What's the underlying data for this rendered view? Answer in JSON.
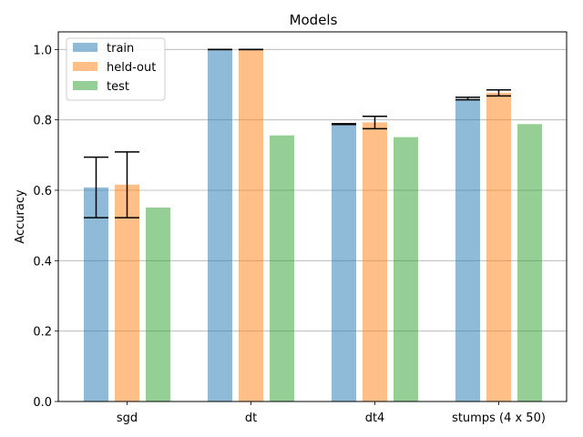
{
  "chart_data": {
    "type": "bar",
    "title": "Models",
    "xlabel": "",
    "ylabel": "Accuracy",
    "ylim": [
      0,
      1.05
    ],
    "yticks": [
      "0.0",
      "0.2",
      "0.4",
      "0.6",
      "0.8",
      "1.0"
    ],
    "grid": "horizontal",
    "legend_position": "top-left",
    "categories": [
      "sgd",
      "dt",
      "dt4",
      "stumps (4 x 50)"
    ],
    "series": [
      {
        "name": "train",
        "color": "#1f77b4",
        "values": [
          0.608,
          1.0,
          0.787,
          0.86
        ],
        "error_low": [
          0.522,
          1.0,
          0.787,
          0.857
        ],
        "error_high": [
          0.694,
          1.0,
          0.789,
          0.864
        ]
      },
      {
        "name": "held-out",
        "color": "#ff7f0e",
        "values": [
          0.616,
          1.0,
          0.793,
          0.877
        ],
        "error_low": [
          0.522,
          1.0,
          0.775,
          0.868
        ],
        "error_high": [
          0.709,
          1.0,
          0.81,
          0.885
        ]
      },
      {
        "name": "test",
        "color": "#2ca02c",
        "values": [
          0.551,
          0.756,
          0.751,
          0.788
        ]
      }
    ]
  }
}
